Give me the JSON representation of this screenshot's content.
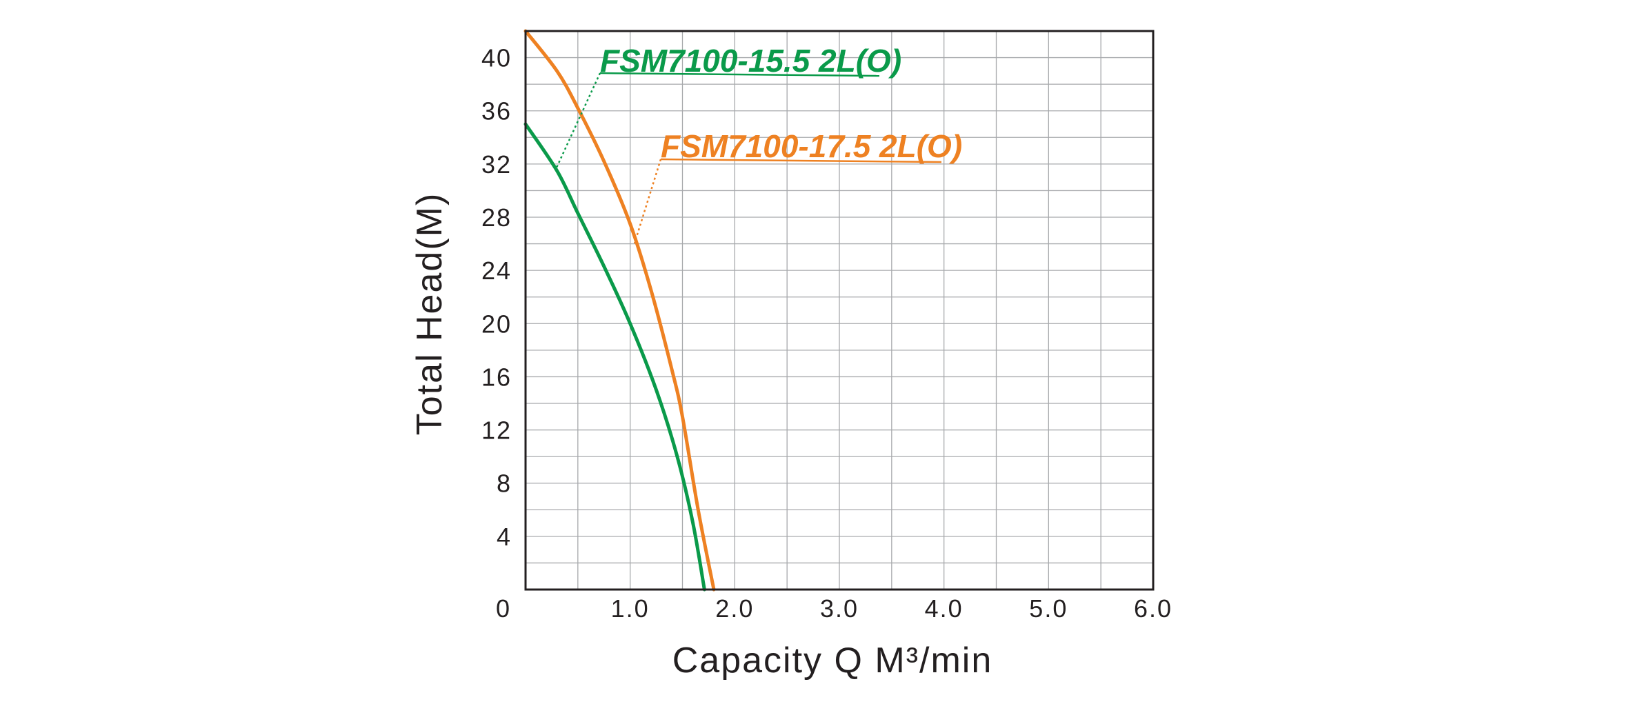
{
  "chart_data": {
    "type": "line",
    "xlabel": "Capacity    Q   M³/min",
    "ylabel": "Total  Head(M)",
    "xlim": [
      0,
      6.0
    ],
    "ylim": [
      0,
      42
    ],
    "x_ticks": [
      {
        "value": 0,
        "label": "0"
      },
      {
        "value": 1,
        "label": "1.0"
      },
      {
        "value": 2,
        "label": "2.0"
      },
      {
        "value": 3,
        "label": "3.0"
      },
      {
        "value": 4,
        "label": "4.0"
      },
      {
        "value": 5,
        "label": "5.0"
      },
      {
        "value": 6,
        "label": "6.0"
      }
    ],
    "y_ticks": [
      {
        "value": 4,
        "label": "4"
      },
      {
        "value": 8,
        "label": "8"
      },
      {
        "value": 12,
        "label": "12"
      },
      {
        "value": 16,
        "label": "16"
      },
      {
        "value": 20,
        "label": "20"
      },
      {
        "value": 24,
        "label": "24"
      },
      {
        "value": 28,
        "label": "28"
      },
      {
        "value": 32,
        "label": "32"
      },
      {
        "value": 36,
        "label": "36"
      },
      {
        "value": 40,
        "label": "40"
      }
    ],
    "grid": true,
    "x_grid_step": 0.5,
    "y_grid_step": 2,
    "series": [
      {
        "name": "FSM7100-15.5 2L(O)",
        "color": "#0a9a4a",
        "points": [
          [
            0,
            35
          ],
          [
            0.3,
            31.5
          ],
          [
            0.5,
            28.3
          ],
          [
            0.75,
            24.3
          ],
          [
            1.0,
            20.0
          ],
          [
            1.25,
            15.0
          ],
          [
            1.45,
            10.0
          ],
          [
            1.6,
            5.0
          ],
          [
            1.71,
            0
          ]
        ]
      },
      {
        "name": "FSM7100-17.5 2L(O)",
        "color": "#ee8122",
        "points": [
          [
            0,
            42
          ],
          [
            0.3,
            39.0
          ],
          [
            0.5,
            36.2
          ],
          [
            0.75,
            32.2
          ],
          [
            1.0,
            27.5
          ],
          [
            1.2,
            22.5
          ],
          [
            1.4,
            16.5
          ],
          [
            1.5,
            13.0
          ],
          [
            1.65,
            6.0
          ],
          [
            1.8,
            0
          ]
        ]
      }
    ]
  }
}
